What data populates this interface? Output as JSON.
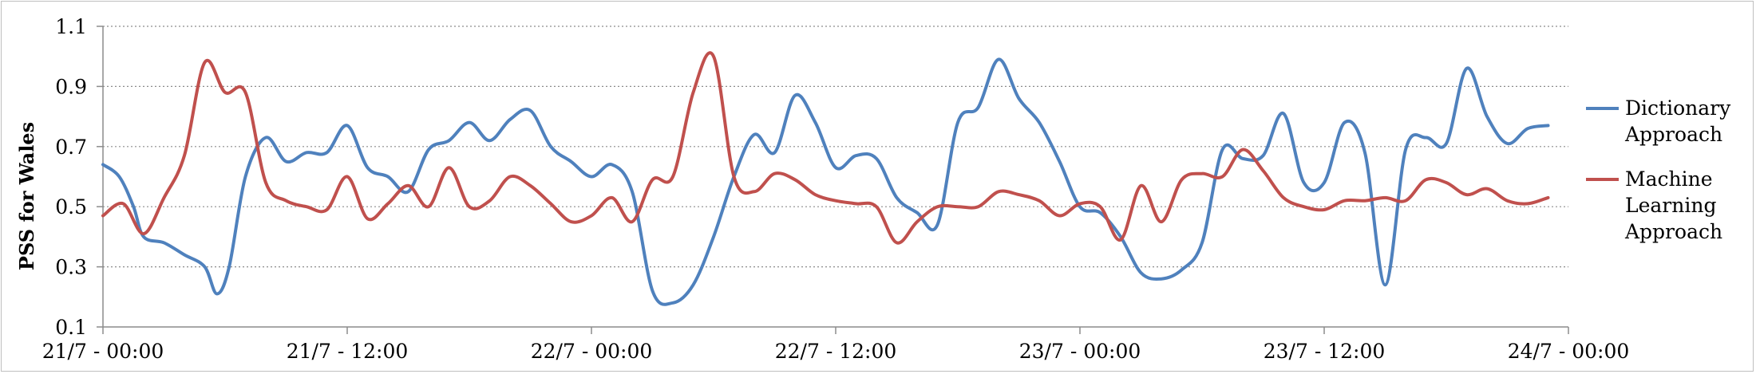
{
  "chart_data": {
    "type": "line",
    "ylabel": "PSS for Wales",
    "ylim": [
      0.1,
      1.1
    ],
    "yticks": [
      "0.1",
      "0.3",
      "0.5",
      "0.7",
      "0.9",
      "1.1"
    ],
    "xlim": [
      0,
      72
    ],
    "xticks": [
      {
        "x": 0,
        "label": "21/7 - 00:00"
      },
      {
        "x": 12,
        "label": "21/7 - 12:00"
      },
      {
        "x": 24,
        "label": "22/7 - 00:00"
      },
      {
        "x": 36,
        "label": "22/7 - 12:00"
      },
      {
        "x": 48,
        "label": "23/7 - 00:00"
      },
      {
        "x": 60,
        "label": "23/7 - 12:00"
      },
      {
        "x": 72,
        "label": "24/7 - 00:00"
      }
    ],
    "grid": true,
    "legend_position": "right",
    "series": [
      {
        "name": "Dictionary Approach",
        "color": "#4f81bd",
        "points": [
          [
            0,
            0.64
          ],
          [
            0.8,
            0.6
          ],
          [
            1.5,
            0.5
          ],
          [
            2,
            0.4
          ],
          [
            3,
            0.38
          ],
          [
            4,
            0.34
          ],
          [
            5,
            0.3
          ],
          [
            5.6,
            0.21
          ],
          [
            6.2,
            0.3
          ],
          [
            7,
            0.6
          ],
          [
            8,
            0.73
          ],
          [
            9,
            0.65
          ],
          [
            10,
            0.68
          ],
          [
            11,
            0.68
          ],
          [
            12,
            0.77
          ],
          [
            13,
            0.63
          ],
          [
            14,
            0.6
          ],
          [
            15,
            0.55
          ],
          [
            16,
            0.69
          ],
          [
            17,
            0.72
          ],
          [
            18,
            0.78
          ],
          [
            19,
            0.72
          ],
          [
            20,
            0.79
          ],
          [
            21,
            0.82
          ],
          [
            22,
            0.7
          ],
          [
            23,
            0.65
          ],
          [
            24,
            0.6
          ],
          [
            25,
            0.64
          ],
          [
            26,
            0.55
          ],
          [
            27,
            0.22
          ],
          [
            28,
            0.18
          ],
          [
            29,
            0.24
          ],
          [
            30,
            0.4
          ],
          [
            31,
            0.6
          ],
          [
            32,
            0.74
          ],
          [
            33,
            0.68
          ],
          [
            34,
            0.87
          ],
          [
            35,
            0.78
          ],
          [
            36,
            0.63
          ],
          [
            37,
            0.67
          ],
          [
            38,
            0.66
          ],
          [
            39,
            0.53
          ],
          [
            40,
            0.48
          ],
          [
            41,
            0.44
          ],
          [
            42,
            0.78
          ],
          [
            43,
            0.83
          ],
          [
            44,
            0.99
          ],
          [
            45,
            0.86
          ],
          [
            46,
            0.78
          ],
          [
            47,
            0.65
          ],
          [
            48,
            0.5
          ],
          [
            49,
            0.48
          ],
          [
            50,
            0.4
          ],
          [
            51,
            0.28
          ],
          [
            52,
            0.26
          ],
          [
            53,
            0.29
          ],
          [
            54,
            0.38
          ],
          [
            55,
            0.69
          ],
          [
            56,
            0.66
          ],
          [
            57,
            0.67
          ],
          [
            58,
            0.81
          ],
          [
            59,
            0.58
          ],
          [
            60,
            0.58
          ],
          [
            61,
            0.78
          ],
          [
            62,
            0.68
          ],
          [
            63,
            0.24
          ],
          [
            64,
            0.69
          ],
          [
            65,
            0.73
          ],
          [
            66,
            0.71
          ],
          [
            67,
            0.96
          ],
          [
            68,
            0.8
          ],
          [
            69,
            0.71
          ],
          [
            70,
            0.76
          ],
          [
            71,
            0.77
          ]
        ]
      },
      {
        "name": "Machine Learning Approach",
        "color": "#c0504d",
        "points": [
          [
            0,
            0.47
          ],
          [
            1,
            0.51
          ],
          [
            2,
            0.41
          ],
          [
            3,
            0.53
          ],
          [
            4,
            0.67
          ],
          [
            5,
            0.98
          ],
          [
            6,
            0.88
          ],
          [
            7,
            0.88
          ],
          [
            8,
            0.58
          ],
          [
            9,
            0.52
          ],
          [
            10,
            0.5
          ],
          [
            11,
            0.49
          ],
          [
            12,
            0.6
          ],
          [
            13,
            0.46
          ],
          [
            14,
            0.51
          ],
          [
            15,
            0.57
          ],
          [
            16,
            0.5
          ],
          [
            17,
            0.63
          ],
          [
            18,
            0.5
          ],
          [
            19,
            0.52
          ],
          [
            20,
            0.6
          ],
          [
            21,
            0.57
          ],
          [
            22,
            0.51
          ],
          [
            23,
            0.45
          ],
          [
            24,
            0.47
          ],
          [
            25,
            0.53
          ],
          [
            26,
            0.45
          ],
          [
            27,
            0.59
          ],
          [
            28,
            0.6
          ],
          [
            29,
            0.88
          ],
          [
            30,
            1.0
          ],
          [
            31,
            0.6
          ],
          [
            32,
            0.55
          ],
          [
            33,
            0.61
          ],
          [
            34,
            0.59
          ],
          [
            35,
            0.54
          ],
          [
            36,
            0.52
          ],
          [
            37,
            0.51
          ],
          [
            38,
            0.5
          ],
          [
            39,
            0.38
          ],
          [
            40,
            0.45
          ],
          [
            41,
            0.5
          ],
          [
            42,
            0.5
          ],
          [
            43,
            0.5
          ],
          [
            44,
            0.55
          ],
          [
            45,
            0.54
          ],
          [
            46,
            0.52
          ],
          [
            47,
            0.47
          ],
          [
            48,
            0.51
          ],
          [
            49,
            0.5
          ],
          [
            50,
            0.39
          ],
          [
            51,
            0.57
          ],
          [
            52,
            0.45
          ],
          [
            53,
            0.59
          ],
          [
            54,
            0.61
          ],
          [
            55,
            0.6
          ],
          [
            56,
            0.69
          ],
          [
            57,
            0.62
          ],
          [
            58,
            0.53
          ],
          [
            59,
            0.5
          ],
          [
            60,
            0.49
          ],
          [
            61,
            0.52
          ],
          [
            62,
            0.52
          ],
          [
            63,
            0.53
          ],
          [
            64,
            0.52
          ],
          [
            65,
            0.59
          ],
          [
            66,
            0.58
          ],
          [
            67,
            0.54
          ],
          [
            68,
            0.56
          ],
          [
            69,
            0.52
          ],
          [
            70,
            0.51
          ],
          [
            71,
            0.53
          ]
        ]
      }
    ],
    "legend": [
      {
        "lines": [
          "Dictionary",
          "Approach"
        ]
      },
      {
        "lines": [
          "Machine",
          "Learning",
          "Approach"
        ]
      }
    ]
  }
}
